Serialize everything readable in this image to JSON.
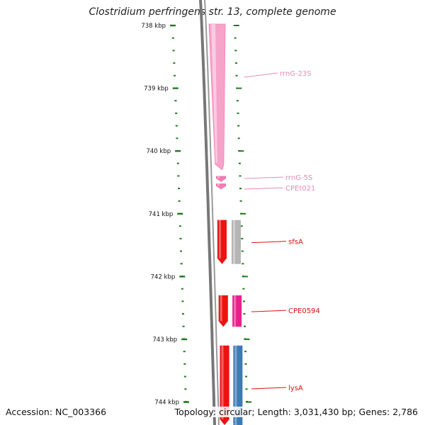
{
  "title": "Clostridium perfringens str. 13, complete genome",
  "accession": "Accession: NC_003366",
  "summary": "Topology: circular; Length: 3,031,430 bp; Genes: 2,786",
  "axis": {
    "ticks": [
      {
        "kbp": 738,
        "label": "738 kbp"
      },
      {
        "kbp": 739,
        "label": "739 kbp"
      },
      {
        "kbp": 740,
        "label": "740 kbp"
      },
      {
        "kbp": 741,
        "label": "741 kbp"
      },
      {
        "kbp": 742,
        "label": "742 kbp"
      },
      {
        "kbp": 743,
        "label": "743 kbp"
      },
      {
        "kbp": 744,
        "label": "744 kbp"
      }
    ],
    "range_kbp": [
      737.9,
      744.4
    ]
  },
  "colors": {
    "rrna": "#f57ab5",
    "rrna_light": "#f6a3c9",
    "cds": "#ee1111",
    "gray_feature": "#b5b5b5",
    "magenta_feature": "#e8218a",
    "blue_feature": "#3d7ab5",
    "tick_green": "#1e7a1e",
    "backbone": "#777777"
  },
  "features": [
    {
      "name": "rrnG-23S",
      "start_kbp": 737.9,
      "end_kbp": 740.3,
      "type": "rrna",
      "label_color": "#e58ab8"
    },
    {
      "name": "rrnG-5S",
      "start_kbp": 740.4,
      "end_kbp": 740.5,
      "type": "rrna",
      "label_color": "#e58ab8"
    },
    {
      "name": "CPEt021",
      "start_kbp": 740.52,
      "end_kbp": 740.58,
      "type": "rrna",
      "label_color": "#e58ab8"
    },
    {
      "name": "sfsA",
      "start_kbp": 741.1,
      "end_kbp": 741.8,
      "type": "cds",
      "label_color": "#dd1111"
    },
    {
      "name": "CPE0594",
      "start_kbp": 742.3,
      "end_kbp": 742.8,
      "type": "cds",
      "label_color": "#dd1111"
    },
    {
      "name": "lysA",
      "start_kbp": 743.1,
      "end_kbp": 744.4,
      "type": "cds",
      "label_color": "#dd1111"
    }
  ]
}
